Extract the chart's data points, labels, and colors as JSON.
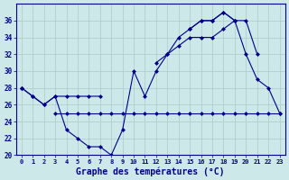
{
  "title": "Graphe des températures (°C)",
  "background_color": "#cce8e8",
  "grid_color": "#aacccc",
  "line_color": "#00008b",
  "hours": [
    0,
    1,
    2,
    3,
    4,
    5,
    6,
    7,
    8,
    9,
    10,
    11,
    12,
    13,
    14,
    15,
    16,
    17,
    18,
    19,
    20,
    21,
    22,
    23
  ],
  "line_actual": [
    28,
    27,
    26,
    27,
    23,
    22,
    21,
    21,
    20,
    23,
    30,
    27,
    30,
    32,
    34,
    35,
    36,
    36,
    37,
    36,
    32,
    29,
    28,
    25
  ],
  "line_max": [
    28,
    27,
    26,
    27,
    27,
    27,
    27,
    27,
    null,
    null,
    null,
    null,
    null,
    null,
    null,
    35,
    36,
    36,
    37,
    36,
    36,
    32,
    null,
    null
  ],
  "line_min": [
    null,
    null,
    null,
    25,
    25,
    25,
    25,
    25,
    25,
    25,
    25,
    25,
    25,
    25,
    25,
    25,
    25,
    25,
    25,
    25,
    25,
    25,
    25,
    25
  ],
  "line_trend": [
    28,
    null,
    null,
    null,
    null,
    null,
    null,
    null,
    null,
    null,
    null,
    null,
    31,
    32,
    33,
    34,
    34,
    34,
    35,
    36,
    null,
    null,
    null,
    null
  ],
  "ylim": [
    20,
    38
  ],
  "yticks": [
    20,
    22,
    24,
    26,
    28,
    30,
    32,
    34,
    36
  ],
  "xlim": [
    -0.5,
    23.5
  ]
}
